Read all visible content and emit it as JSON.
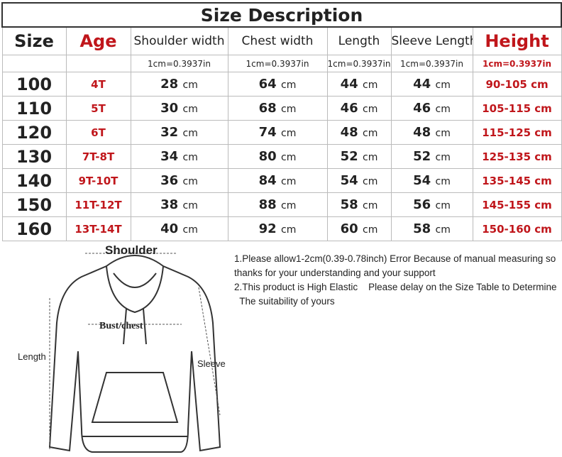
{
  "title": "Size Description",
  "headers": [
    "Size",
    "Age",
    "Shoulder width",
    "Chest width",
    "Length",
    "Sleeve Length",
    "Height"
  ],
  "unit_note": "1cm=0.3937in",
  "unit_suffix": "cm",
  "rows": [
    {
      "size": "100",
      "age": "4T",
      "shoulder": "28",
      "chest": "64",
      "length": "44",
      "sleeve": "44",
      "height": "90-105 cm"
    },
    {
      "size": "110",
      "age": "5T",
      "shoulder": "30",
      "chest": "68",
      "length": "46",
      "sleeve": "46",
      "height": "105-115 cm"
    },
    {
      "size": "120",
      "age": "6T",
      "shoulder": "32",
      "chest": "74",
      "length": "48",
      "sleeve": "48",
      "height": "115-125 cm"
    },
    {
      "size": "130",
      "age": "7T-8T",
      "shoulder": "34",
      "chest": "80",
      "length": "52",
      "sleeve": "52",
      "height": "125-135 cm"
    },
    {
      "size": "140",
      "age": "9T-10T",
      "shoulder": "36",
      "chest": "84",
      "length": "54",
      "sleeve": "54",
      "height": "135-145 cm"
    },
    {
      "size": "150",
      "age": "11T-12T",
      "shoulder": "38",
      "chest": "88",
      "length": "58",
      "sleeve": "56",
      "height": "145-155 cm"
    },
    {
      "size": "160",
      "age": "13T-14T",
      "shoulder": "40",
      "chest": "92",
      "length": "60",
      "sleeve": "58",
      "height": "150-160 cm"
    }
  ],
  "diagram": {
    "shoulder": "Shoulder",
    "chest": "Bust/chest",
    "length": "Length",
    "sleeve": "Sleeve"
  },
  "notes": [
    "1.Please allow1-2cm(0.39-0.78inch) Error Because of manual measuring so",
    "thanks for your understanding and your support",
    "2.This product is High Elastic    Please delay on the Size Table to Determine",
    "  The suitability of yours"
  ],
  "colors": {
    "accent_red": "#c0161b",
    "text": "#222222"
  }
}
